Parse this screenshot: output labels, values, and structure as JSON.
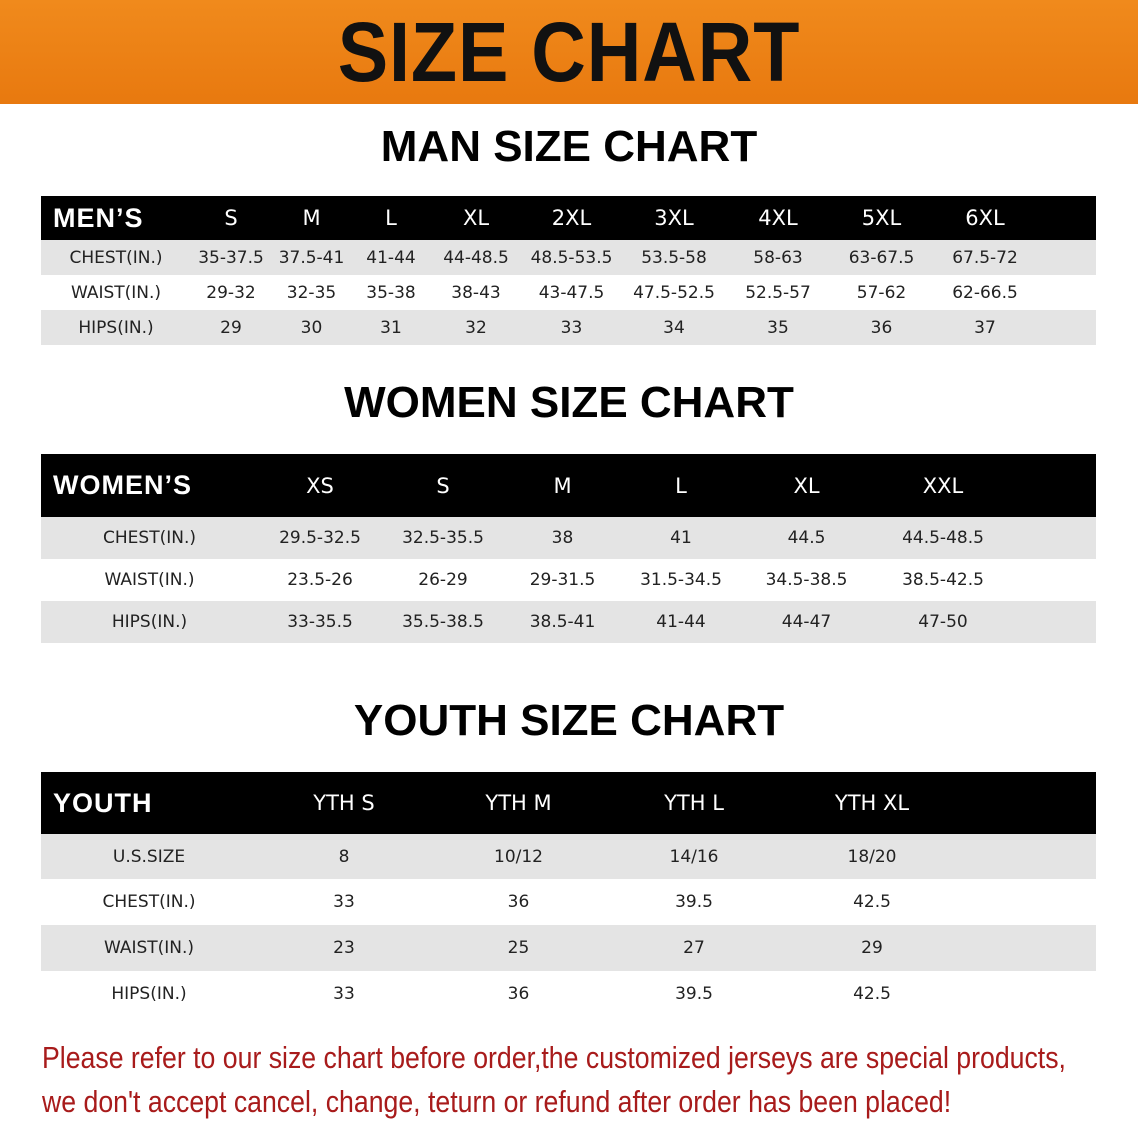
{
  "banner": {
    "title": "SIZE CHART",
    "color": "#ec8116"
  },
  "men": {
    "title": "MAN SIZE CHART",
    "header": [
      "MEN’S",
      "S",
      "M",
      "L",
      "XL",
      "2XL",
      "3XL",
      "4XL",
      "5XL",
      "6XL"
    ],
    "rows": [
      [
        "CHEST(IN.)",
        "35-37.5",
        "37.5-41",
        "41-44",
        "44-48.5",
        "48.5-53.5",
        "53.5-58",
        "58-63",
        "63-67.5",
        "67.5-72"
      ],
      [
        "WAIST(IN.)",
        "29-32",
        "32-35",
        "35-38",
        "38-43",
        "43-47.5",
        "47.5-52.5",
        "52.5-57",
        "57-62",
        "62-66.5"
      ],
      [
        "HIPS(IN.)",
        "29",
        "30",
        "31",
        "32",
        "33",
        "34",
        "35",
        "36",
        "37"
      ]
    ]
  },
  "women": {
    "title": "WOMEN SIZE CHART",
    "header": [
      "WOMEN’S",
      "XS",
      "S",
      "M",
      "L",
      "XL",
      "XXL"
    ],
    "rows": [
      [
        "CHEST(IN.)",
        "29.5-32.5",
        "32.5-35.5",
        "38",
        "41",
        "44.5",
        "44.5-48.5"
      ],
      [
        "WAIST(IN.)",
        "23.5-26",
        "26-29",
        "29-31.5",
        "31.5-34.5",
        "34.5-38.5",
        "38.5-42.5"
      ],
      [
        "HIPS(IN.)",
        "33-35.5",
        "35.5-38.5",
        "38.5-41",
        "41-44",
        "44-47",
        "47-50"
      ]
    ]
  },
  "youth": {
    "title": "YOUTH SIZE CHART",
    "header": [
      "YOUTH",
      "YTH S",
      "YTH M",
      "YTH L",
      "YTH XL"
    ],
    "rows": [
      [
        "U.S.SIZE",
        "8",
        "10/12",
        "14/16",
        "18/20"
      ],
      [
        "CHEST(IN.)",
        "33",
        "36",
        "39.5",
        "42.5"
      ],
      [
        "WAIST(IN.)",
        "23",
        "25",
        "27",
        "29"
      ],
      [
        "HIPS(IN.)",
        "33",
        "36",
        "39.5",
        "42.5"
      ]
    ]
  },
  "notice": {
    "line1": "Please refer to our size chart before order,the customized jerseys are special products,",
    "line2": "we don't accept cancel, change, teturn or refund after order has been placed!",
    "color": "#a81b1b"
  }
}
